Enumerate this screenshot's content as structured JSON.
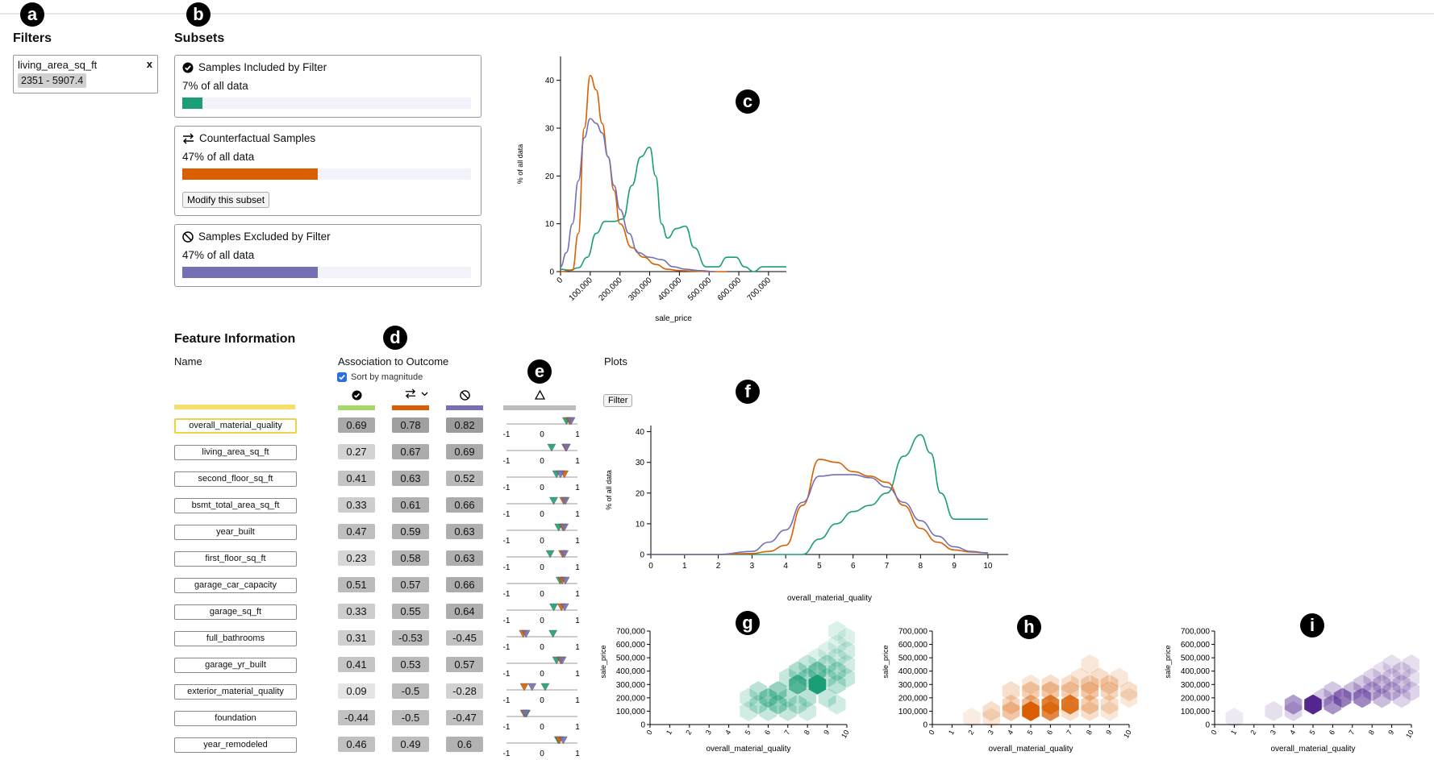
{
  "badges": {
    "a": "a",
    "b": "b",
    "c": "c",
    "d": "d",
    "e": "e",
    "f": "f",
    "g": "g",
    "h": "h",
    "i": "i"
  },
  "filters": {
    "title": "Filters",
    "name": "living_area_sq_ft",
    "close": "x",
    "range": "2351 - 5907.4"
  },
  "subsets": {
    "title": "Subsets",
    "items": [
      {
        "label": "Samples Included by Filter",
        "pct_text": "7% of all data",
        "pct": 7,
        "color": "#1b9e77"
      },
      {
        "label": "Counterfactual Samples",
        "pct_text": "47% of all data",
        "pct": 47,
        "color": "#d95f02",
        "button": "Modify this subset"
      },
      {
        "label": "Samples Excluded by Filter",
        "pct_text": "47% of all data",
        "pct": 47,
        "color": "#7570b3"
      }
    ]
  },
  "feature_info": {
    "title": "Feature Information",
    "name_header": "Name",
    "assoc_header": "Association to Outcome",
    "sort_label": "Sort by magnitude",
    "plots_header": "Plots",
    "filter_button": "Filter",
    "rows": [
      {
        "name": "overall_material_quality",
        "v": [
          "0.69",
          "0.78",
          "0.82"
        ],
        "tri": [
          0.69,
          0.78,
          0.82
        ]
      },
      {
        "name": "living_area_sq_ft",
        "v": [
          "0.27",
          "0.67",
          "0.69"
        ],
        "tri": [
          0.27,
          0.67,
          0.69
        ]
      },
      {
        "name": "second_floor_sq_ft",
        "v": [
          "0.41",
          "0.63",
          "0.52"
        ],
        "tri": [
          0.41,
          0.63,
          0.52
        ]
      },
      {
        "name": "bsmt_total_area_sq_ft",
        "v": [
          "0.33",
          "0.61",
          "0.66"
        ],
        "tri": [
          0.33,
          0.61,
          0.66
        ]
      },
      {
        "name": "year_built",
        "v": [
          "0.47",
          "0.59",
          "0.63"
        ],
        "tri": [
          0.47,
          0.59,
          0.63
        ]
      },
      {
        "name": "first_floor_sq_ft",
        "v": [
          "0.23",
          "0.58",
          "0.63"
        ],
        "tri": [
          0.23,
          0.58,
          0.63
        ]
      },
      {
        "name": "garage_car_capacity",
        "v": [
          "0.51",
          "0.57",
          "0.66"
        ],
        "tri": [
          0.51,
          0.57,
          0.66
        ]
      },
      {
        "name": "garage_sq_ft",
        "v": [
          "0.33",
          "0.55",
          "0.64"
        ],
        "tri": [
          0.33,
          0.55,
          0.64
        ]
      },
      {
        "name": "full_bathrooms",
        "v": [
          "0.31",
          "-0.53",
          "-0.45"
        ],
        "tri": [
          0.31,
          -0.53,
          -0.45
        ]
      },
      {
        "name": "garage_yr_built",
        "v": [
          "0.41",
          "0.53",
          "0.57"
        ],
        "tri": [
          0.41,
          0.53,
          0.57
        ]
      },
      {
        "name": "exterior_material_quality",
        "v": [
          "0.09",
          "-0.5",
          "-0.28"
        ],
        "tri": [
          0.09,
          -0.5,
          -0.28
        ]
      },
      {
        "name": "foundation",
        "v": [
          "-0.44",
          "-0.5",
          "-0.47"
        ],
        "tri": [
          -0.44,
          -0.5,
          -0.47
        ]
      },
      {
        "name": "year_remodeled",
        "v": [
          "0.46",
          "0.49",
          "0.6"
        ],
        "tri": [
          0.46,
          0.49,
          0.6
        ]
      }
    ]
  },
  "colors": {
    "included": "#1b9e77",
    "counterfactual": "#d95f02",
    "excluded": "#7570b3",
    "highlight": "#f7df6e"
  },
  "chart_data": [
    {
      "type": "line",
      "title": "",
      "xlabel": "sale_price",
      "ylabel": "% of all data",
      "xlim": [
        0,
        760000
      ],
      "ylim": [
        0,
        45
      ],
      "x_ticks": [
        "0",
        "100,000",
        "200,000",
        "300,000",
        "400,000",
        "500,000",
        "600,000",
        "700,000"
      ],
      "y_ticks": [
        "0",
        "10",
        "20",
        "30",
        "40"
      ],
      "series": [
        {
          "name": "Included",
          "color": "#1b9e77",
          "x": [
            0,
            30000,
            60000,
            90000,
            120000,
            150000,
            180000,
            210000,
            240000,
            270000,
            300000,
            320000,
            340000,
            360000,
            390000,
            420000,
            450000,
            490000,
            530000,
            560000,
            590000,
            620000,
            650000,
            680000,
            720000,
            760000
          ],
          "y": [
            0.5,
            0.3,
            0.8,
            3,
            8,
            10.5,
            10.5,
            11,
            18,
            24,
            26,
            20,
            10,
            7,
            9,
            9.5,
            5,
            1,
            1,
            3,
            3,
            1,
            0,
            1,
            1,
            1
          ]
        },
        {
          "name": "Counterfactual",
          "color": "#d95f02",
          "x": [
            0,
            40000,
            60000,
            80000,
            100000,
            120000,
            140000,
            160000,
            180000,
            200000,
            240000,
            280000,
            320000,
            360000,
            400000,
            450000,
            500000,
            560000
          ],
          "y": [
            0,
            0.3,
            8,
            30,
            41,
            38,
            31,
            24,
            17,
            10,
            5,
            3,
            1.5,
            0.5,
            0.2,
            0.1,
            0,
            0
          ]
        },
        {
          "name": "Excluded",
          "color": "#7570b3",
          "x": [
            0,
            20000,
            40000,
            60000,
            80000,
            100000,
            120000,
            140000,
            160000,
            180000,
            200000,
            230000,
            260000,
            300000,
            340000,
            380000,
            420000,
            470000,
            520000
          ],
          "y": [
            1,
            4,
            10,
            19,
            28,
            32,
            31,
            29,
            24,
            18,
            13,
            8,
            4,
            3,
            2.5,
            1,
            0.5,
            0.2,
            0
          ]
        }
      ]
    },
    {
      "type": "line",
      "title": "",
      "xlabel": "overall_material_quality",
      "ylabel": "% of all data",
      "xlim": [
        0,
        10.6
      ],
      "ylim": [
        0,
        42
      ],
      "x_ticks": [
        "0",
        "1",
        "2",
        "3",
        "4",
        "5",
        "6",
        "7",
        "8",
        "9",
        "10"
      ],
      "y_ticks": [
        "0",
        "10",
        "20",
        "30",
        "40"
      ],
      "series": [
        {
          "name": "Included",
          "color": "#1b9e77",
          "x": [
            0,
            1,
            2,
            3,
            4,
            4.5,
            5,
            5.5,
            6,
            6.5,
            7,
            7.5,
            8,
            8.3,
            8.6,
            9,
            9.5,
            10
          ],
          "y": [
            0,
            0,
            0,
            0,
            0,
            0,
            5,
            10,
            14,
            16,
            20,
            32,
            39,
            33,
            20,
            11.5,
            11.5,
            11.5
          ]
        },
        {
          "name": "Counterfactual",
          "color": "#d95f02",
          "x": [
            0,
            1,
            2,
            3,
            3.5,
            4,
            4.5,
            5,
            5.5,
            6,
            6.5,
            7,
            7.5,
            8,
            8.5,
            9,
            9.5,
            10
          ],
          "y": [
            0,
            0,
            0,
            0.3,
            1,
            3,
            16,
            31,
            30,
            27,
            25.5,
            23.5,
            16,
            8.5,
            4,
            1.5,
            0.8,
            0.5
          ]
        },
        {
          "name": "Excluded",
          "color": "#7570b3",
          "x": [
            0,
            1,
            2,
            3,
            3.5,
            4,
            4.5,
            5,
            5.5,
            6,
            6.5,
            7,
            7.5,
            8,
            8.5,
            9,
            9.5,
            10
          ],
          "y": [
            0,
            0,
            0,
            1,
            4,
            8,
            17,
            25.5,
            26,
            26,
            25,
            22,
            17,
            11,
            6,
            2.5,
            1,
            0.5
          ]
        }
      ]
    },
    {
      "type": "heatmap",
      "title": "",
      "xlabel": "overall_material_quality",
      "ylabel": "sale_price",
      "xlim": [
        0,
        10
      ],
      "ylim": [
        0,
        700000
      ],
      "x_ticks": [
        "0",
        "1",
        "2",
        "3",
        "4",
        "5",
        "6",
        "7",
        "8",
        "9",
        "10"
      ],
      "y_ticks": [
        "0",
        "100,000",
        "200,000",
        "300,000",
        "400,000",
        "500,000",
        "600,000",
        "700,000"
      ],
      "color": "#1b9e77",
      "cells": [
        [
          5,
          100000,
          0.2
        ],
        [
          6,
          100000,
          0.25
        ],
        [
          7,
          100000,
          0.25
        ],
        [
          8,
          100000,
          0.2
        ],
        [
          5.5,
          150000,
          0.3
        ],
        [
          6.5,
          150000,
          0.45
        ],
        [
          7.5,
          150000,
          0.3
        ],
        [
          9.5,
          150000,
          0.2
        ],
        [
          5,
          200000,
          0.2
        ],
        [
          6,
          200000,
          0.5
        ],
        [
          7,
          200000,
          0.3
        ],
        [
          8,
          200000,
          0.3
        ],
        [
          9,
          200000,
          0.25
        ],
        [
          5.5,
          250000,
          0.3
        ],
        [
          6.5,
          250000,
          0.45
        ],
        [
          7.5,
          300000,
          0.75
        ],
        [
          8.5,
          300000,
          1.0
        ],
        [
          9.5,
          300000,
          0.3
        ],
        [
          7,
          350000,
          0.25
        ],
        [
          8,
          350000,
          0.4
        ],
        [
          9,
          350000,
          0.3
        ],
        [
          10,
          350000,
          0.25
        ],
        [
          7.5,
          400000,
          0.35
        ],
        [
          8.5,
          400000,
          0.55
        ],
        [
          9.5,
          400000,
          0.35
        ],
        [
          8,
          450000,
          0.25
        ],
        [
          9,
          450000,
          0.3
        ],
        [
          10,
          450000,
          0.2
        ],
        [
          8.5,
          500000,
          0.15
        ],
        [
          9.5,
          500000,
          0.2
        ],
        [
          9,
          550000,
          0.15
        ],
        [
          10,
          550000,
          0.2
        ],
        [
          9.5,
          600000,
          0.15
        ],
        [
          10,
          650000,
          0.15
        ],
        [
          9.5,
          700000,
          0.15
        ]
      ]
    },
    {
      "type": "heatmap",
      "title": "",
      "xlabel": "overall_material_quality",
      "ylabel": "sale_price",
      "xlim": [
        0,
        10
      ],
      "ylim": [
        0,
        700000
      ],
      "x_ticks": [
        "0",
        "1",
        "2",
        "3",
        "4",
        "5",
        "6",
        "7",
        "8",
        "9",
        "10"
      ],
      "y_ticks": [
        "0",
        "100,000",
        "200,000",
        "300,000",
        "400,000",
        "500,000",
        "600,000",
        "700,000"
      ],
      "color": "#d95f02",
      "cells": [
        [
          2,
          50000,
          0.12
        ],
        [
          3,
          50000,
          0.15
        ],
        [
          3,
          100000,
          0.2
        ],
        [
          4,
          100000,
          0.35
        ],
        [
          5,
          100000,
          1.0
        ],
        [
          6,
          100000,
          0.75
        ],
        [
          7,
          100000,
          0.2
        ],
        [
          8,
          100000,
          0.2
        ],
        [
          9,
          100000,
          0.15
        ],
        [
          4,
          150000,
          0.25
        ],
        [
          5,
          150000,
          0.45
        ],
        [
          6,
          150000,
          0.8
        ],
        [
          7,
          150000,
          0.85
        ],
        [
          8,
          150000,
          0.3
        ],
        [
          9,
          150000,
          0.2
        ],
        [
          10,
          200000,
          0.15
        ],
        [
          4,
          250000,
          0.2
        ],
        [
          5,
          250000,
          0.3
        ],
        [
          6,
          250000,
          0.35
        ],
        [
          7,
          250000,
          0.3
        ],
        [
          8,
          250000,
          0.35
        ],
        [
          9,
          250000,
          0.25
        ],
        [
          10,
          250000,
          0.2
        ],
        [
          5,
          300000,
          0.15
        ],
        [
          6,
          300000,
          0.2
        ],
        [
          7,
          300000,
          0.2
        ],
        [
          8,
          300000,
          0.25
        ],
        [
          9,
          300000,
          0.25
        ],
        [
          7.5,
          350000,
          0.15
        ],
        [
          8.5,
          350000,
          0.2
        ],
        [
          9.5,
          350000,
          0.15
        ],
        [
          8,
          450000,
          0.15
        ]
      ]
    },
    {
      "type": "heatmap",
      "title": "",
      "xlabel": "overall_material_quality",
      "ylabel": "sale_price",
      "xlim": [
        0,
        10
      ],
      "ylim": [
        0,
        700000
      ],
      "x_ticks": [
        "0",
        "1",
        "2",
        "3",
        "4",
        "5",
        "6",
        "7",
        "8",
        "9",
        "10"
      ],
      "y_ticks": [
        "0",
        "100,000",
        "200,000",
        "300,000",
        "400,000",
        "500,000",
        "600,000",
        "700,000"
      ],
      "color": "#54278f",
      "cells": [
        [
          1,
          50000,
          0.1
        ],
        [
          3,
          100000,
          0.15
        ],
        [
          4,
          100000,
          0.2
        ],
        [
          4,
          150000,
          0.45
        ],
        [
          5,
          150000,
          1.0
        ],
        [
          6,
          150000,
          0.5
        ],
        [
          5.5,
          200000,
          0.25
        ],
        [
          6.5,
          200000,
          0.6
        ],
        [
          7.5,
          200000,
          0.55
        ],
        [
          8.5,
          200000,
          0.3
        ],
        [
          9.5,
          200000,
          0.2
        ],
        [
          6,
          250000,
          0.25
        ],
        [
          7,
          250000,
          0.3
        ],
        [
          8,
          250000,
          0.35
        ],
        [
          9,
          250000,
          0.3
        ],
        [
          10,
          250000,
          0.2
        ],
        [
          7.5,
          300000,
          0.25
        ],
        [
          8.5,
          300000,
          0.3
        ],
        [
          9.5,
          300000,
          0.25
        ],
        [
          8,
          350000,
          0.2
        ],
        [
          9,
          350000,
          0.2
        ],
        [
          10,
          350000,
          0.15
        ],
        [
          8.5,
          400000,
          0.15
        ],
        [
          9.5,
          400000,
          0.2
        ],
        [
          9,
          450000,
          0.15
        ],
        [
          10,
          450000,
          0.15
        ]
      ]
    }
  ]
}
